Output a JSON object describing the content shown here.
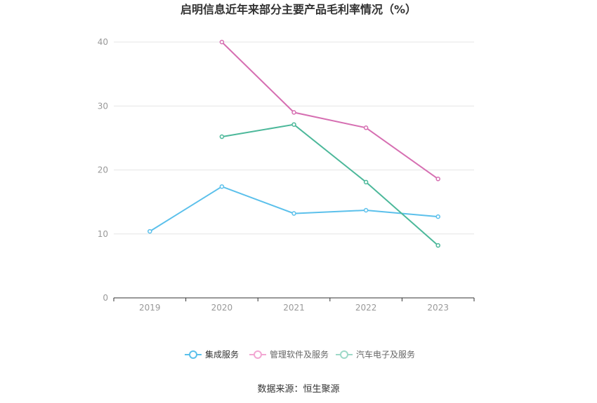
{
  "chart_data": {
    "type": "line",
    "title": "启明信息近年来部分主要产品毛利率情况（%）",
    "categories": [
      "2019",
      "2020",
      "2021",
      "2022",
      "2023"
    ],
    "ylim": [
      0,
      40
    ],
    "yticks": [
      0,
      10,
      20,
      30,
      40
    ],
    "grid": true,
    "legend_position": "bottom",
    "series": [
      {
        "name": "集成服务",
        "color": "#5bc0eb",
        "values": [
          10.4,
          17.4,
          13.2,
          13.7,
          12.7
        ]
      },
      {
        "name": "管理软件及服务",
        "color": "#d66fb2",
        "values": [
          null,
          40.0,
          29.0,
          26.6,
          18.6
        ]
      },
      {
        "name": "汽车电子及服务",
        "color": "#4cb89a",
        "values": [
          null,
          25.2,
          27.1,
          18.1,
          8.2
        ]
      }
    ],
    "source": "数据来源：恒生聚源"
  },
  "colors": {
    "grid": "#e6e6e6",
    "axis": "#333333",
    "legend_series_1_inactive": "#f2a7d3",
    "legend_series_2_inactive": "#9ed9c8"
  }
}
